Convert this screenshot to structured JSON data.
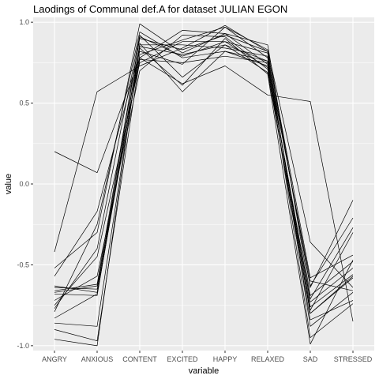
{
  "chart_data": {
    "type": "line",
    "title": "Laodings of Communal def.A for dataset JULIAN EGON",
    "xlabel": "variable",
    "ylabel": "value",
    "categories": [
      "ANGRY",
      "ANXIOUS",
      "CONTENT",
      "EXCITED",
      "HAPPY",
      "RELAXED",
      "SAD",
      "STRESSED"
    ],
    "ylim": [
      -1.03,
      1.03
    ],
    "yticks": [
      1.0,
      0.5,
      0.0,
      -0.5,
      -1.0
    ],
    "ytick_labels": [
      "1.0",
      "0.5",
      "0.0",
      "-0.5",
      "-1.0"
    ],
    "grid": true,
    "legend": "none",
    "colors": {
      "panel": "#ebebeb",
      "grid": "#ffffff",
      "line": "#000000"
    },
    "series": [
      {
        "values": [
          0.2,
          0.07,
          0.78,
          0.62,
          0.73,
          0.55,
          0.51,
          -0.85
        ]
      },
      {
        "values": [
          -0.42,
          0.57,
          0.73,
          0.84,
          0.98,
          0.82,
          -0.64,
          -0.1
        ]
      },
      {
        "values": [
          -0.52,
          -0.3,
          0.99,
          0.81,
          0.93,
          0.86,
          -0.69,
          -0.48
        ]
      },
      {
        "values": [
          -0.57,
          -0.17,
          0.82,
          0.74,
          0.97,
          0.78,
          -0.8,
          -0.57
        ]
      },
      {
        "values": [
          -0.63,
          -0.67,
          0.86,
          0.86,
          0.84,
          0.79,
          -0.63,
          -0.21
        ]
      },
      {
        "values": [
          -0.64,
          -0.65,
          0.9,
          0.83,
          0.92,
          0.82,
          -0.58,
          -0.44
        ]
      },
      {
        "values": [
          -0.66,
          -0.62,
          0.91,
          0.79,
          0.88,
          0.81,
          -0.88,
          -0.67
        ]
      },
      {
        "values": [
          -0.67,
          -0.63,
          0.78,
          0.95,
          0.93,
          0.74,
          -0.73,
          -0.52
        ]
      },
      {
        "values": [
          -0.68,
          -0.69,
          0.85,
          0.8,
          0.86,
          0.69,
          -0.78,
          -0.3
        ]
      },
      {
        "values": [
          -0.72,
          -0.57,
          0.7,
          0.92,
          0.91,
          0.71,
          -0.8,
          -0.58
        ]
      },
      {
        "values": [
          -0.75,
          -0.45,
          0.75,
          0.88,
          0.88,
          0.72,
          -0.84,
          -0.72
        ]
      },
      {
        "values": [
          -0.77,
          -0.4,
          0.92,
          0.66,
          0.86,
          0.76,
          -0.6,
          -0.66
        ]
      },
      {
        "values": [
          -0.79,
          -0.25,
          0.94,
          0.78,
          0.82,
          0.76,
          -0.95,
          -0.74
        ]
      },
      {
        "values": [
          -0.83,
          -0.68,
          0.8,
          0.89,
          0.97,
          0.83,
          -0.36,
          -0.64
        ]
      },
      {
        "values": [
          -0.86,
          -0.88,
          0.84,
          0.61,
          0.9,
          0.68,
          -0.99,
          -0.47
        ]
      },
      {
        "values": [
          -0.9,
          -0.97,
          0.77,
          0.75,
          0.79,
          0.75,
          -0.76,
          -0.56
        ]
      },
      {
        "values": [
          -0.96,
          -1.0,
          0.87,
          0.57,
          0.82,
          0.73,
          -0.71,
          -0.27
        ]
      }
    ]
  }
}
